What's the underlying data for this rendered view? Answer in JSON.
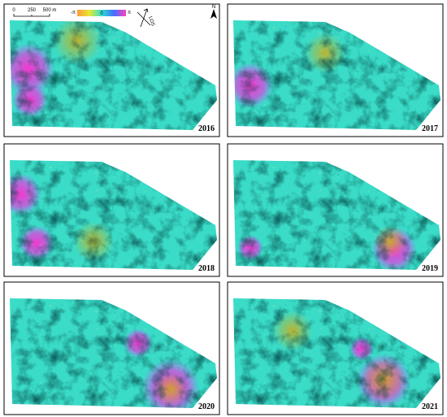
{
  "panels": [
    {
      "label": "2016"
    },
    {
      "label": "2017"
    },
    {
      "label": "2018"
    },
    {
      "label": "2019"
    },
    {
      "label": "2020"
    },
    {
      "label": "2021"
    }
  ],
  "legend": {
    "scale_labels": [
      "0",
      "250",
      "500 m"
    ],
    "colorbar_labels": [
      "-π",
      "0",
      "π"
    ],
    "los": "LOS",
    "north": "N"
  }
}
